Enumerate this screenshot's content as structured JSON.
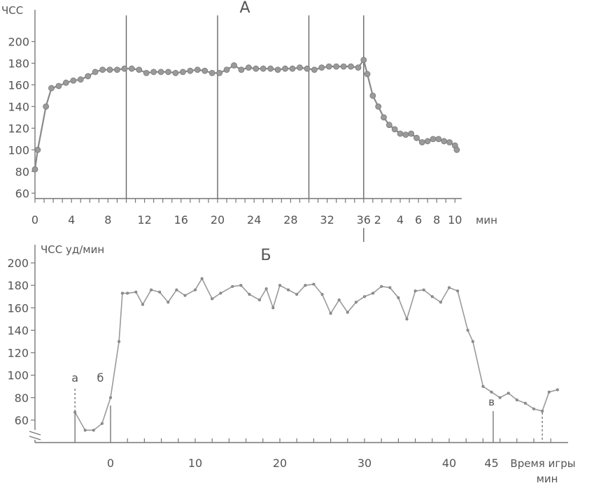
{
  "chart_data": [
    {
      "type": "line",
      "title": "А",
      "ylabel": "ЧСС",
      "ylim": [
        55,
        210
      ],
      "yticks": [
        60,
        80,
        100,
        120,
        140,
        160,
        180,
        200
      ],
      "xticks_main": [
        "0",
        "4",
        "8",
        "12",
        "16",
        "20",
        "24",
        "28",
        "32",
        "36"
      ],
      "xticks_recovery": [
        "2",
        "4",
        "6",
        "8",
        "10"
      ],
      "xunit": "мин",
      "dividers": [
        10,
        20,
        30,
        36
      ],
      "series": [
        {
          "values": [
            {
              "x": 0,
              "y": 82
            },
            {
              "x": 0.3,
              "y": 100
            },
            {
              "x": 1.2,
              "y": 140
            },
            {
              "x": 1.8,
              "y": 157
            },
            {
              "x": 2.6,
              "y": 159
            },
            {
              "x": 3.4,
              "y": 162
            },
            {
              "x": 4.2,
              "y": 164
            },
            {
              "x": 5.0,
              "y": 165
            },
            {
              "x": 5.8,
              "y": 168
            },
            {
              "x": 6.6,
              "y": 172
            },
            {
              "x": 7.4,
              "y": 174
            },
            {
              "x": 8.2,
              "y": 174
            },
            {
              "x": 9.0,
              "y": 174
            },
            {
              "x": 9.8,
              "y": 175
            },
            {
              "x": 10.6,
              "y": 175
            },
            {
              "x": 11.4,
              "y": 174
            },
            {
              "x": 12.2,
              "y": 171
            },
            {
              "x": 13.0,
              "y": 172
            },
            {
              "x": 13.8,
              "y": 172
            },
            {
              "x": 14.6,
              "y": 172
            },
            {
              "x": 15.4,
              "y": 171
            },
            {
              "x": 16.2,
              "y": 172
            },
            {
              "x": 17.0,
              "y": 173
            },
            {
              "x": 17.8,
              "y": 174
            },
            {
              "x": 18.6,
              "y": 173
            },
            {
              "x": 19.4,
              "y": 171
            },
            {
              "x": 20.2,
              "y": 171
            },
            {
              "x": 21.0,
              "y": 174
            },
            {
              "x": 21.8,
              "y": 178
            },
            {
              "x": 22.6,
              "y": 174
            },
            {
              "x": 23.4,
              "y": 176
            },
            {
              "x": 24.2,
              "y": 175
            },
            {
              "x": 25.0,
              "y": 175
            },
            {
              "x": 25.8,
              "y": 175
            },
            {
              "x": 26.6,
              "y": 174
            },
            {
              "x": 27.4,
              "y": 175
            },
            {
              "x": 28.2,
              "y": 175
            },
            {
              "x": 29.0,
              "y": 176
            },
            {
              "x": 29.8,
              "y": 175
            },
            {
              "x": 30.6,
              "y": 174
            },
            {
              "x": 31.4,
              "y": 176
            },
            {
              "x": 32.2,
              "y": 177
            },
            {
              "x": 33.0,
              "y": 177
            },
            {
              "x": 33.8,
              "y": 177
            },
            {
              "x": 34.6,
              "y": 177
            },
            {
              "x": 35.4,
              "y": 176
            },
            {
              "x": 36.0,
              "y": 183
            },
            {
              "x": 36.4,
              "y": 170
            },
            {
              "x": 37.0,
              "y": 150
            },
            {
              "x": 37.6,
              "y": 140
            },
            {
              "x": 38.2,
              "y": 130
            },
            {
              "x": 38.8,
              "y": 123
            },
            {
              "x": 39.4,
              "y": 119
            },
            {
              "x": 40.0,
              "y": 115
            },
            {
              "x": 40.6,
              "y": 114
            },
            {
              "x": 41.2,
              "y": 115
            },
            {
              "x": 41.8,
              "y": 111
            },
            {
              "x": 42.4,
              "y": 107
            },
            {
              "x": 43.0,
              "y": 108
            },
            {
              "x": 43.6,
              "y": 110
            },
            {
              "x": 44.2,
              "y": 110
            },
            {
              "x": 44.8,
              "y": 108
            },
            {
              "x": 45.4,
              "y": 107
            },
            {
              "x": 46.0,
              "y": 104
            },
            {
              "x": 46.2,
              "y": 100
            }
          ]
        }
      ]
    },
    {
      "type": "line",
      "title": "Б",
      "ylabel": "ЧСС уд/мин",
      "xlabel": "Время игры мин",
      "ylim": [
        40,
        205
      ],
      "yticks": [
        60,
        80,
        100,
        120,
        140,
        160,
        180,
        200
      ],
      "xticks": [
        "0",
        "10",
        "20",
        "30",
        "40",
        "45"
      ],
      "annotations": [
        "а",
        "б",
        "в"
      ],
      "series": [
        {
          "values": [
            {
              "x": -4.2,
              "y": 67
            },
            {
              "x": -3.0,
              "y": 51
            },
            {
              "x": -2.0,
              "y": 51
            },
            {
              "x": -1.0,
              "y": 57
            },
            {
              "x": 0.0,
              "y": 80
            },
            {
              "x": 1.0,
              "y": 130
            },
            {
              "x": 1.4,
              "y": 173
            },
            {
              "x": 2.0,
              "y": 173
            },
            {
              "x": 3.0,
              "y": 174
            },
            {
              "x": 3.8,
              "y": 163
            },
            {
              "x": 4.8,
              "y": 176
            },
            {
              "x": 5.8,
              "y": 174
            },
            {
              "x": 6.8,
              "y": 165
            },
            {
              "x": 7.8,
              "y": 176
            },
            {
              "x": 8.8,
              "y": 171
            },
            {
              "x": 10.0,
              "y": 176
            },
            {
              "x": 10.8,
              "y": 186
            },
            {
              "x": 12.0,
              "y": 168
            },
            {
              "x": 13.0,
              "y": 173
            },
            {
              "x": 14.4,
              "y": 179
            },
            {
              "x": 15.4,
              "y": 180
            },
            {
              "x": 16.4,
              "y": 172
            },
            {
              "x": 17.6,
              "y": 167
            },
            {
              "x": 18.4,
              "y": 177
            },
            {
              "x": 19.2,
              "y": 160
            },
            {
              "x": 20.0,
              "y": 180
            },
            {
              "x": 21.0,
              "y": 176
            },
            {
              "x": 22.0,
              "y": 172
            },
            {
              "x": 23.0,
              "y": 180
            },
            {
              "x": 24.0,
              "y": 181
            },
            {
              "x": 25.0,
              "y": 172
            },
            {
              "x": 26.0,
              "y": 155
            },
            {
              "x": 27.0,
              "y": 167
            },
            {
              "x": 28.0,
              "y": 156
            },
            {
              "x": 29.0,
              "y": 165
            },
            {
              "x": 30.0,
              "y": 170
            },
            {
              "x": 31.0,
              "y": 173
            },
            {
              "x": 32.0,
              "y": 179
            },
            {
              "x": 33.0,
              "y": 178
            },
            {
              "x": 34.0,
              "y": 169
            },
            {
              "x": 35.0,
              "y": 150
            },
            {
              "x": 36.0,
              "y": 175
            },
            {
              "x": 37.0,
              "y": 176
            },
            {
              "x": 38.0,
              "y": 170
            },
            {
              "x": 39.0,
              "y": 165
            },
            {
              "x": 40.0,
              "y": 178
            },
            {
              "x": 41.0,
              "y": 175
            },
            {
              "x": 42.2,
              "y": 140
            },
            {
              "x": 42.8,
              "y": 130
            },
            {
              "x": 44.0,
              "y": 90
            },
            {
              "x": 45.0,
              "y": 85
            },
            {
              "x": 46.0,
              "y": 80
            },
            {
              "x": 47.0,
              "y": 84
            },
            {
              "x": 48.0,
              "y": 78
            },
            {
              "x": 49.0,
              "y": 75
            },
            {
              "x": 50.0,
              "y": 70
            },
            {
              "x": 51.0,
              "y": 68
            },
            {
              "x": 51.8,
              "y": 85
            },
            {
              "x": 52.8,
              "y": 87
            }
          ]
        }
      ]
    }
  ]
}
